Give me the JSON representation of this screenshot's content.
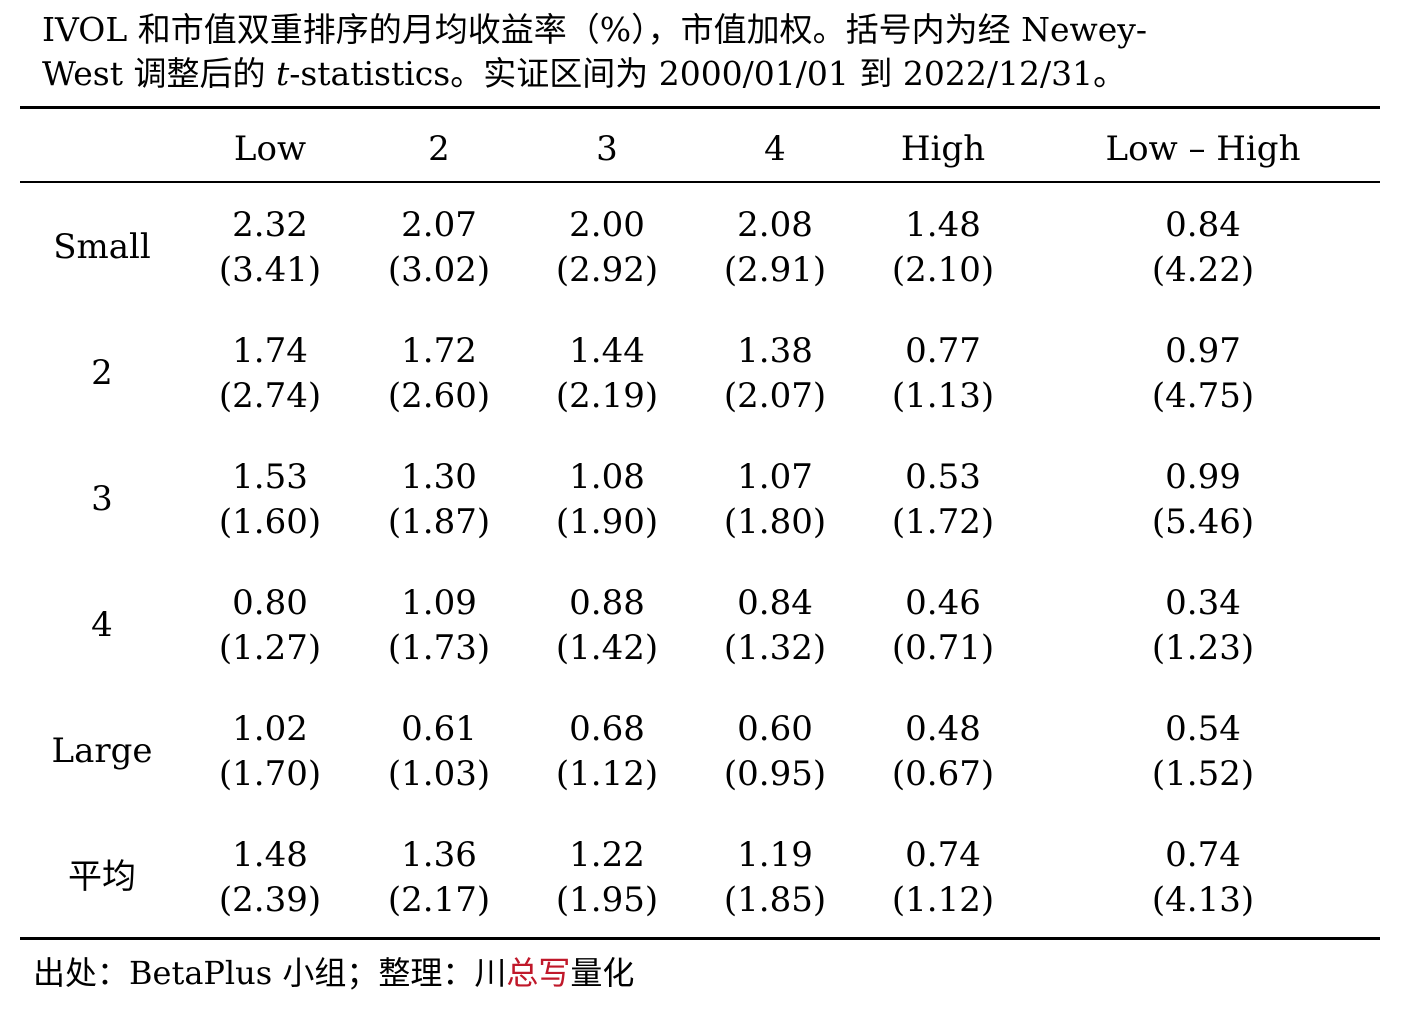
{
  "caption": {
    "line1": "IVOL 和市值双重排序的月均收益率（%），市值加权。括号内为经 Newey-",
    "line2_a": "West 调整后的 ",
    "line2_t": "t",
    "line2_b": "-statistics。实证区间为 2000/01/01 到 2022/12/31。"
  },
  "table": {
    "columns": [
      "Low",
      "2",
      "3",
      "4",
      "High",
      "Low – High"
    ],
    "rows": [
      {
        "label": "Small",
        "values": [
          "2.32",
          "2.07",
          "2.00",
          "2.08",
          "1.48",
          "0.84"
        ],
        "tstats": [
          "(3.41)",
          "(3.02)",
          "(2.92)",
          "(2.91)",
          "(2.10)",
          "(4.22)"
        ]
      },
      {
        "label": "2",
        "values": [
          "1.74",
          "1.72",
          "1.44",
          "1.38",
          "0.77",
          "0.97"
        ],
        "tstats": [
          "(2.74)",
          "(2.60)",
          "(2.19)",
          "(2.07)",
          "(1.13)",
          "(4.75)"
        ]
      },
      {
        "label": "3",
        "values": [
          "1.53",
          "1.30",
          "1.08",
          "1.07",
          "0.53",
          "0.99"
        ],
        "tstats": [
          "(1.60)",
          "(1.87)",
          "(1.90)",
          "(1.80)",
          "(1.72)",
          "(5.46)"
        ]
      },
      {
        "label": "4",
        "values": [
          "0.80",
          "1.09",
          "0.88",
          "0.84",
          "0.46",
          "0.34"
        ],
        "tstats": [
          "(1.27)",
          "(1.73)",
          "(1.42)",
          "(1.32)",
          "(0.71)",
          "(1.23)"
        ]
      },
      {
        "label": "Large",
        "values": [
          "1.02",
          "0.61",
          "0.68",
          "0.60",
          "0.48",
          "0.54"
        ],
        "tstats": [
          "(1.70)",
          "(1.03)",
          "(1.12)",
          "(0.95)",
          "(0.67)",
          "(1.52)"
        ]
      },
      {
        "label": "平均",
        "values": [
          "1.48",
          "1.36",
          "1.22",
          "1.19",
          "0.74",
          "0.74"
        ],
        "tstats": [
          "(2.39)",
          "(2.17)",
          "(1.95)",
          "(1.85)",
          "(1.12)",
          "(4.13)"
        ]
      }
    ]
  },
  "source": {
    "prefix": "出处：BetaPlus 小组；整理：川",
    "highlight": "总写",
    "suffix": "量化",
    "highlight_color": "#c0182a"
  }
}
